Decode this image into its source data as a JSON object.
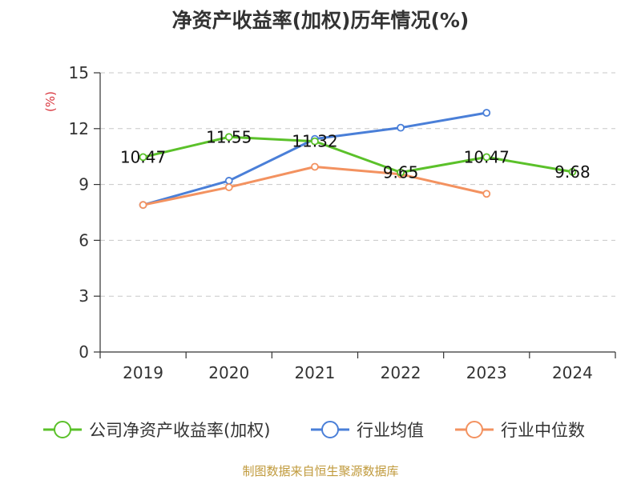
{
  "chart_data": {
    "type": "line",
    "title": "净资产收益率(加权)历年情况(%)",
    "ylabel": "(%)",
    "categories": [
      "2019",
      "2020",
      "2021",
      "2022",
      "2023",
      "2024"
    ],
    "ylim": [
      0,
      15
    ],
    "yticks": [
      0,
      3,
      6,
      9,
      12,
      15
    ],
    "grid": true,
    "legend_position": "bottom",
    "series": [
      {
        "name": "公司净资产收益率(加权)",
        "color": "#5bc12a",
        "values": [
          10.47,
          11.55,
          11.32,
          9.65,
          10.47,
          9.68
        ],
        "labels": [
          "10.47",
          "11.55",
          "11.32",
          "9.65",
          "10.47",
          "9.68"
        ]
      },
      {
        "name": "行业均值",
        "color": "#4a7fd8",
        "values": [
          7.9,
          9.2,
          11.45,
          12.05,
          12.85,
          null
        ]
      },
      {
        "name": "行业中位数",
        "color": "#f39260",
        "values": [
          7.9,
          8.85,
          9.95,
          9.55,
          8.5,
          null
        ]
      }
    ]
  },
  "footer": {
    "source": "制图数据来自恒生聚源数据库"
  }
}
